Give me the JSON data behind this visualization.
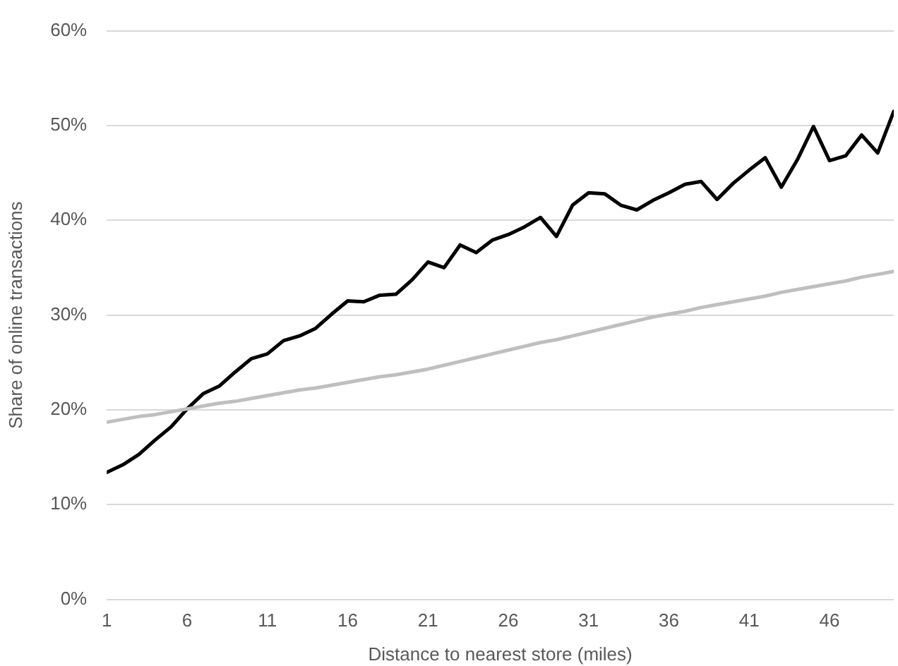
{
  "chart_data": {
    "type": "line",
    "xlabel": "Distance to nearest store (miles)",
    "ylabel": "Share of online transactions",
    "x": [
      1,
      2,
      3,
      4,
      5,
      6,
      7,
      8,
      9,
      10,
      11,
      12,
      13,
      14,
      15,
      16,
      17,
      18,
      19,
      20,
      21,
      22,
      23,
      24,
      25,
      26,
      27,
      28,
      29,
      30,
      31,
      32,
      33,
      34,
      35,
      36,
      37,
      38,
      39,
      40,
      41,
      42,
      43,
      44,
      45,
      46,
      47,
      48,
      49,
      50
    ],
    "xlim": [
      1,
      50
    ],
    "xticks": [
      1,
      6,
      11,
      16,
      21,
      26,
      31,
      36,
      41,
      46
    ],
    "series": [
      {
        "color": "#000000",
        "values": [
          13.4,
          14.2,
          15.3,
          16.8,
          18.2,
          20.1,
          21.7,
          22.5,
          24.0,
          25.4,
          25.9,
          27.3,
          27.8,
          28.6,
          30.1,
          31.5,
          31.4,
          32.1,
          32.2,
          33.7,
          35.6,
          35.0,
          37.4,
          36.6,
          37.9,
          38.5,
          39.3,
          40.3,
          38.3,
          41.6,
          42.9,
          42.8,
          41.6,
          41.1,
          42.1,
          42.9,
          43.8,
          44.1,
          42.2,
          43.9,
          45.3,
          46.6,
          43.5,
          46.4,
          49.9,
          46.3,
          46.8,
          49.0,
          47.1,
          51.5
        ]
      },
      {
        "color": "#bfbfbf",
        "values": [
          18.7,
          19.0,
          19.3,
          19.5,
          19.8,
          20.1,
          20.4,
          20.7,
          20.9,
          21.2,
          21.5,
          21.8,
          22.1,
          22.3,
          22.6,
          22.9,
          23.2,
          23.5,
          23.7,
          24.0,
          24.3,
          24.7,
          25.1,
          25.5,
          25.9,
          26.3,
          26.7,
          27.1,
          27.4,
          27.8,
          28.2,
          28.6,
          29.0,
          29.4,
          29.8,
          30.1,
          30.4,
          30.8,
          31.1,
          31.4,
          31.7,
          32.0,
          32.4,
          32.7,
          33.0,
          33.3,
          33.6,
          34.0,
          34.3,
          34.6
        ]
      }
    ],
    "ylim": [
      0,
      60
    ],
    "yticks": [
      {
        "value": 0,
        "label": "0%"
      },
      {
        "value": 10,
        "label": "10%"
      },
      {
        "value": 20,
        "label": "20%"
      },
      {
        "value": 30,
        "label": "30%"
      },
      {
        "value": 40,
        "label": "40%"
      },
      {
        "value": 50,
        "label": "50%"
      },
      {
        "value": 60,
        "label": "60%"
      }
    ],
    "grid": "y",
    "legend": false,
    "marker": "none",
    "line_style": "solid"
  }
}
